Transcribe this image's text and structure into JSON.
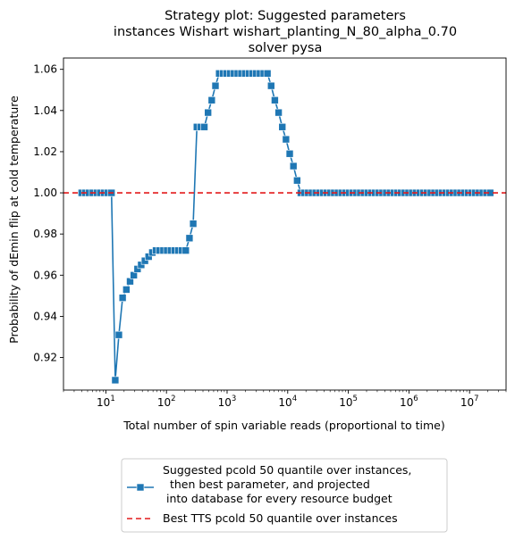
{
  "chart_data": {
    "type": "line",
    "title": [
      "Strategy plot: Suggested parameters",
      "instances Wishart wishart_planting_N_80_alpha_0.70",
      "solver pysa"
    ],
    "xlabel": "Total number of spin variable reads (proportional to time)",
    "ylabel": "Probability of dEmin flip at cold temperature",
    "x_scale": "log",
    "xlim": [
      2,
      40000000
    ],
    "ylim": [
      0.9042,
      1.0655
    ],
    "x_ticks": [
      {
        "value": 10,
        "base": "10",
        "exp": "1"
      },
      {
        "value": 100,
        "base": "10",
        "exp": "2"
      },
      {
        "value": 1000,
        "base": "10",
        "exp": "3"
      },
      {
        "value": 10000,
        "base": "10",
        "exp": "4"
      },
      {
        "value": 100000,
        "base": "10",
        "exp": "5"
      },
      {
        "value": 1000000,
        "base": "10",
        "exp": "6"
      },
      {
        "value": 10000000,
        "base": "10",
        "exp": "7"
      }
    ],
    "y_ticks": [
      {
        "value": 0.92,
        "label": "0.92"
      },
      {
        "value": 0.94,
        "label": "0.94"
      },
      {
        "value": 0.96,
        "label": "0.96"
      },
      {
        "value": 0.98,
        "label": "0.98"
      },
      {
        "value": 1.0,
        "label": "1.00"
      },
      {
        "value": 1.02,
        "label": "1.02"
      },
      {
        "value": 1.04,
        "label": "1.04"
      },
      {
        "value": 1.06,
        "label": "1.06"
      }
    ],
    "grid": false,
    "legend_position": "below-plot",
    "series": [
      {
        "name": "Suggested pcold 50 quantile over instances,\n  then best parameter, and projected\n into database for every resource budget",
        "color": "#1f77b4",
        "marker": "square",
        "line_style": "solid",
        "x": [
          4,
          4.6,
          5.3,
          6.1,
          7.1,
          8.1,
          9.4,
          10.8,
          12.4,
          14.3,
          16.4,
          18.9,
          21.8,
          25.1,
          28.9,
          33.3,
          38.3,
          44.1,
          50.8,
          58.5,
          67.3,
          77.5,
          89.3,
          102.8,
          118.4,
          136.3,
          156.9,
          180.7,
          208.1,
          239.6,
          275.9,
          317.7,
          365.8,
          421.2,
          485,
          558.5,
          643.1,
          740.5,
          852.6,
          981.7,
          1130.4,
          1301.6,
          1498.7,
          1725.7,
          1987.1,
          2288,
          2634.5,
          3033.5,
          3493,
          4022,
          4631,
          5332,
          6140,
          7070,
          8141,
          9374,
          10793,
          12428,
          14310,
          16477,
          18973,
          21846,
          25155,
          28965,
          33351,
          38402,
          44219,
          50916,
          58627,
          67506,
          77730,
          89503,
          103058,
          118667,
          136639,
          157333,
          181162,
          208599,
          240191,
          276568,
          318455,
          366686,
          422221,
          486168,
          559798,
          644580,
          742201,
          854607,
          984036,
          1133069,
          1304673,
          1502267,
          1729788,
          1991768,
          2293426,
          2640771,
          3040721,
          3501245,
          4031514,
          4642094,
          5345143,
          6154668,
          7086795,
          8160094,
          9395947,
          10818976,
          12457522,
          14344219,
          16516657,
          19018114,
          21898421
        ],
        "y": [
          1.0,
          1.0,
          1.0,
          1.0,
          1.0,
          1.0,
          1.0,
          1.0,
          1.0,
          0.909,
          0.931,
          0.949,
          0.953,
          0.957,
          0.96,
          0.963,
          0.965,
          0.967,
          0.969,
          0.971,
          0.972,
          0.972,
          0.972,
          0.972,
          0.972,
          0.972,
          0.972,
          0.972,
          0.972,
          0.978,
          0.985,
          1.032,
          1.032,
          1.032,
          1.039,
          1.045,
          1.052,
          1.058,
          1.058,
          1.058,
          1.058,
          1.058,
          1.058,
          1.058,
          1.058,
          1.058,
          1.058,
          1.058,
          1.058,
          1.058,
          1.058,
          1.052,
          1.045,
          1.039,
          1.032,
          1.026,
          1.019,
          1.013,
          1.006,
          1.0,
          1.0,
          1.0,
          1.0,
          1.0,
          1.0,
          1.0,
          1.0,
          1.0,
          1.0,
          1.0,
          1.0,
          1.0,
          1.0,
          1.0,
          1.0,
          1.0,
          1.0,
          1.0,
          1.0,
          1.0,
          1.0,
          1.0,
          1.0,
          1.0,
          1.0,
          1.0,
          1.0,
          1.0,
          1.0,
          1.0,
          1.0,
          1.0,
          1.0,
          1.0,
          1.0,
          1.0,
          1.0,
          1.0,
          1.0,
          1.0,
          1.0,
          1.0,
          1.0,
          1.0,
          1.0,
          1.0,
          1.0,
          1.0,
          1.0,
          1.0,
          1.0
        ]
      },
      {
        "name": "Best TTS pcold 50 quantile over instances",
        "color": "#e31a1c",
        "line_style": "dashed",
        "hline": 1.0
      }
    ]
  }
}
